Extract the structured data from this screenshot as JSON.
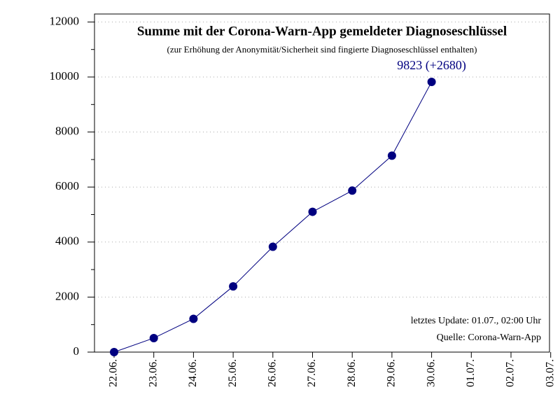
{
  "chart_data": {
    "type": "line",
    "title": "Summe mit der Corona-Warn-App gemeldeter Diagnoseschlüssel",
    "subtitle": "(zur Erhöhung der Anonymität/Sicherheit sind fingierte Diagnoseschlüssel enthalten)",
    "annotations": [
      "letztes Update: 01.07., 02:00 Uhr",
      "Quelle: Corona-Warn-App"
    ],
    "categories": [
      "22.06.",
      "23.06.",
      "24.06.",
      "25.06.",
      "26.06.",
      "27.06.",
      "28.06.",
      "29.06.",
      "30.06.",
      "01.07.",
      "02.07.",
      "03.07."
    ],
    "series": [
      {
        "name": "Diagnoseschlüssel",
        "color": "#000080",
        "values": [
          0,
          510,
          1210,
          2390,
          3830,
          5100,
          5870,
          7140,
          9823,
          null,
          null,
          null
        ],
        "value_labels": [
          null,
          null,
          null,
          null,
          null,
          null,
          null,
          null,
          "9823 (+2680)",
          null,
          null,
          null
        ]
      }
    ],
    "ylim": [
      0,
      12290
    ],
    "yticks": [
      0,
      2000,
      4000,
      6000,
      8000,
      10000,
      12000
    ],
    "yminorticks": [
      1000,
      3000,
      5000,
      7000,
      9000,
      11000
    ],
    "grid": true
  }
}
